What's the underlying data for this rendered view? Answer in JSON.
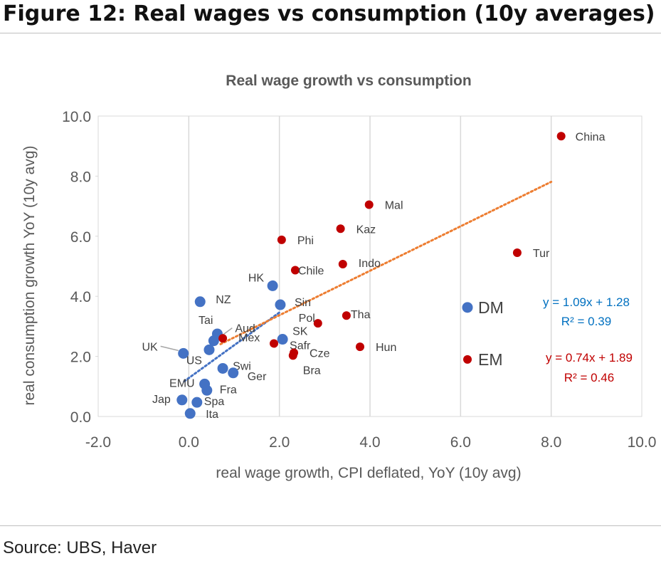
{
  "figure_title": "Figure 12: Real wages vs consumption (10y averages)",
  "source": "Source: UBS, Haver",
  "colors": {
    "dm": "#4472C4",
    "em": "#C00000",
    "dm_trend": "#4472C4",
    "em_trend": "#ED7D31",
    "eq_dm": "#0070C0",
    "eq_em": "#C00000"
  },
  "chart_data": {
    "type": "scatter",
    "title": "Real wage growth vs consumption",
    "xlabel": "real wage growth, CPI deflated, YoY (10y avg)",
    "ylabel": "real consumption growth YoY (10y avg)",
    "xlim": [
      -2,
      10
    ],
    "ylim": [
      0,
      10
    ],
    "xticks": [
      "-2.0",
      "0.0",
      "2.0",
      "4.0",
      "6.0",
      "8.0",
      "10.0"
    ],
    "yticks": [
      "0.0",
      "2.0",
      "4.0",
      "6.0",
      "8.0",
      "10.0"
    ],
    "grid": "vertical",
    "series": [
      {
        "name": "DM",
        "points": [
          {
            "label": "HK",
            "x": 1.85,
            "y": 4.35
          },
          {
            "label": "NZ",
            "x": 0.25,
            "y": 3.82
          },
          {
            "label": "Sin",
            "x": 2.02,
            "y": 3.72
          },
          {
            "label": "Tai",
            "x": 0.63,
            "y": 2.75
          },
          {
            "label": "Aud",
            "x": 0.55,
            "y": 2.52
          },
          {
            "label": "SK",
            "x": 2.07,
            "y": 2.57
          },
          {
            "label": "UK",
            "x": -0.12,
            "y": 2.1
          },
          {
            "label": "US",
            "x": 0.45,
            "y": 2.22
          },
          {
            "label": "Swi",
            "x": 0.75,
            "y": 1.6
          },
          {
            "label": "Ger",
            "x": 0.98,
            "y": 1.45
          },
          {
            "label": "EMU",
            "x": 0.35,
            "y": 1.08
          },
          {
            "label": "Fra",
            "x": 0.4,
            "y": 0.87
          },
          {
            "label": "Jap",
            "x": -0.15,
            "y": 0.55
          },
          {
            "label": "Spa",
            "x": 0.18,
            "y": 0.47
          },
          {
            "label": "Ita",
            "x": 0.03,
            "y": 0.1
          }
        ],
        "trendline": {
          "equation": "y = 1.09x + 1.28",
          "r2": "R² = 0.39",
          "x_from": -0.1,
          "x_to": 2.0
        }
      },
      {
        "name": "EM",
        "points": [
          {
            "label": "China",
            "x": 8.22,
            "y": 9.33
          },
          {
            "label": "Mal",
            "x": 3.98,
            "y": 7.05
          },
          {
            "label": "Kaz",
            "x": 3.35,
            "y": 6.25
          },
          {
            "label": "Phi",
            "x": 2.05,
            "y": 5.88
          },
          {
            "label": "Tur",
            "x": 7.25,
            "y": 5.45
          },
          {
            "label": "Chile",
            "x": 2.35,
            "y": 4.87
          },
          {
            "label": "Indo",
            "x": 3.4,
            "y": 5.07
          },
          {
            "label": "Tha",
            "x": 3.48,
            "y": 3.36
          },
          {
            "label": "Pol",
            "x": 2.85,
            "y": 3.1
          },
          {
            "label": "Mex",
            "x": 0.75,
            "y": 2.6
          },
          {
            "label": "Safr",
            "x": 1.88,
            "y": 2.43
          },
          {
            "label": "Hun",
            "x": 3.78,
            "y": 2.32
          },
          {
            "label": "Cze",
            "x": 2.32,
            "y": 2.12
          },
          {
            "label": "Bra",
            "x": 2.3,
            "y": 2.03
          }
        ],
        "trendline": {
          "equation": "y = 0.74x + 1.89",
          "r2": "R² = 0.46",
          "x_from": 0.7,
          "x_to": 8.0
        }
      }
    ],
    "legend": [
      {
        "name": "DM"
      },
      {
        "name": "EM"
      }
    ],
    "legend_position": "right"
  }
}
